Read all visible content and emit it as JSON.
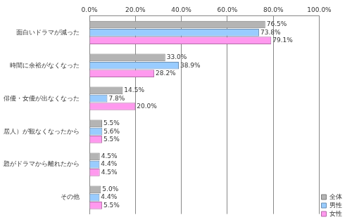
{
  "chart_data": {
    "type": "bar",
    "orientation": "horizontal",
    "categories": [
      "面白いドラマが減った",
      "時間に余裕がなくなった",
      "好きな俳優・女優が出なくなった",
      "他の家族（同居人）が観なくなったから",
      "周りの友人の話題がドラマから離れたから",
      "その他"
    ],
    "series": [
      {
        "name": "全体",
        "color": "#b4b4b4",
        "values": [
          76.5,
          33.0,
          14.5,
          5.5,
          4.5,
          5.0
        ],
        "value_labels": [
          "76.5%",
          "33.0%",
          "14.5%",
          "5.5%",
          "4.5%",
          "5.0%"
        ]
      },
      {
        "name": "男性",
        "color": "#99ccff",
        "values": [
          73.8,
          38.9,
          7.8,
          5.6,
          4.4,
          4.4
        ],
        "value_labels": [
          "73.8%",
          "38.9%",
          "7.8%",
          "5.6%",
          "4.4%",
          "4.4%"
        ]
      },
      {
        "name": "女性",
        "color": "#ff99ee",
        "values": [
          79.1,
          28.2,
          20.0,
          5.5,
          4.5,
          5.5
        ],
        "value_labels": [
          "79.1%",
          "28.2%",
          "20.0%",
          "5.5%",
          "4.5%",
          "5.5%"
        ]
      }
    ],
    "xlim": [
      0,
      100
    ],
    "xticks": [
      {
        "value": 0,
        "label": "0.0%"
      },
      {
        "value": 20,
        "label": "20.0%"
      },
      {
        "value": 40,
        "label": "40.0%"
      },
      {
        "value": 60,
        "label": "60.0%"
      },
      {
        "value": 80,
        "label": "80.0%"
      },
      {
        "value": 100,
        "label": "100.0%"
      }
    ],
    "grid": true,
    "legend": "lower right",
    "data_labels": true
  }
}
